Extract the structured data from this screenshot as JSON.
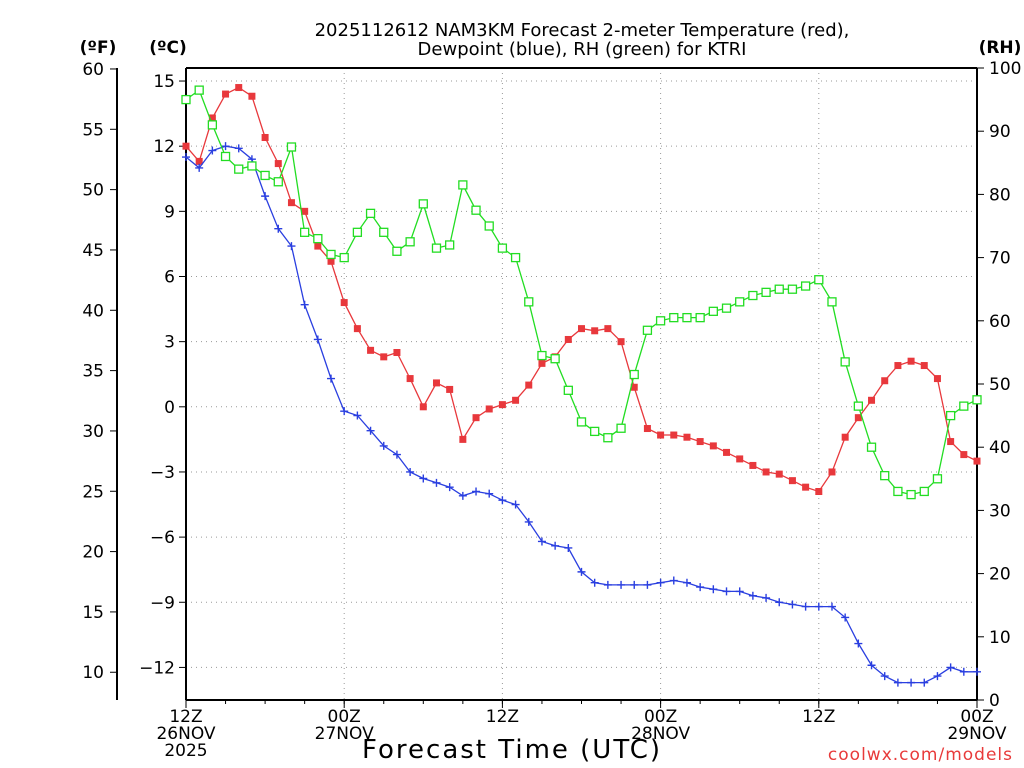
{
  "chart_data": {
    "type": "line",
    "title": [
      "2025112612 NAM3KM Forecast 2-meter Temperature (red),",
      "Dewpoint (blue), RH (green) for KTRI"
    ],
    "xlabel": "Forecast Time (UTC)",
    "credit": "coolwx.com/models",
    "units": {
      "fahrenheit": "(ºF)",
      "celsius": "(ºC)",
      "rh": "(RH)"
    },
    "x_ticks": [
      {
        "hour": 0,
        "lines": [
          "12Z",
          "26NOV",
          "2025"
        ]
      },
      {
        "hour": 12,
        "lines": [
          "00Z",
          "27NOV"
        ]
      },
      {
        "hour": 24,
        "lines": [
          "12Z"
        ]
      },
      {
        "hour": 36,
        "lines": [
          "00Z",
          "28NOV"
        ]
      },
      {
        "hour": 48,
        "lines": [
          "12Z"
        ]
      },
      {
        "hour": 60,
        "lines": [
          "00Z",
          "29NOV"
        ]
      }
    ],
    "x_range": [
      0,
      60
    ],
    "celsius_range": [
      -13.5,
      15.6
    ],
    "celsius_ticks": [
      "15",
      "12",
      "9",
      "6",
      "3",
      "0",
      "−3",
      "−6",
      "−9",
      "−12"
    ],
    "fahrenheit_ticks": [
      "60",
      "55",
      "50",
      "45",
      "40",
      "35",
      "30",
      "25",
      "20",
      "15",
      "10"
    ],
    "rh_range": [
      0,
      100
    ],
    "rh_ticks": [
      "100",
      "90",
      "80",
      "70",
      "60",
      "50",
      "40",
      "30",
      "20",
      "10",
      "0"
    ],
    "hours": [
      0,
      1,
      2,
      3,
      4,
      5,
      6,
      7,
      8,
      9,
      10,
      11,
      12,
      13,
      14,
      15,
      16,
      17,
      18,
      19,
      20,
      21,
      22,
      23,
      24,
      25,
      26,
      27,
      28,
      29,
      30,
      31,
      32,
      33,
      34,
      35,
      36,
      37,
      38,
      39,
      40,
      41,
      42,
      43,
      44,
      45,
      46,
      47,
      48,
      49,
      50,
      51,
      52,
      53,
      54,
      55,
      56,
      57,
      58,
      59,
      60
    ],
    "series": [
      {
        "name": "2-meter Temperature",
        "unit": "C",
        "color": "#e8383c",
        "marker": "filled-square",
        "values": [
          12.0,
          11.3,
          13.3,
          14.4,
          14.7,
          14.3,
          12.4,
          11.2,
          9.4,
          9.0,
          7.4,
          6.7,
          4.8,
          3.6,
          2.6,
          2.3,
          2.5,
          1.3,
          0.0,
          1.1,
          0.8,
          -1.5,
          -0.5,
          -0.1,
          0.1,
          0.3,
          1.0,
          2.0,
          2.3,
          3.1,
          3.6,
          3.5,
          3.6,
          3.0,
          0.9,
          -1.0,
          -1.3,
          -1.3,
          -1.4,
          -1.6,
          -1.8,
          -2.1,
          -2.4,
          -2.7,
          -3.0,
          -3.1,
          -3.4,
          -3.7,
          -3.9,
          -3.0,
          -1.4,
          -0.5,
          0.3,
          1.2,
          1.9,
          2.1,
          1.9,
          1.3,
          -1.6,
          -2.2,
          -2.5
        ]
      },
      {
        "name": "Dewpoint",
        "unit": "C",
        "color": "#2a3fe0",
        "marker": "plus",
        "values": [
          11.5,
          11.0,
          11.8,
          12.0,
          11.9,
          11.4,
          9.7,
          8.2,
          7.4,
          4.7,
          3.1,
          1.3,
          -0.2,
          -0.4,
          -1.1,
          -1.8,
          -2.2,
          -3.0,
          -3.3,
          -3.5,
          -3.7,
          -4.1,
          -3.9,
          -4.0,
          -4.3,
          -4.5,
          -5.3,
          -6.2,
          -6.4,
          -6.5,
          -7.6,
          -8.1,
          -8.2,
          -8.2,
          -8.2,
          -8.2,
          -8.1,
          -8.0,
          -8.1,
          -8.3,
          -8.4,
          -8.5,
          -8.5,
          -8.7,
          -8.8,
          -9.0,
          -9.1,
          -9.2,
          -9.2,
          -9.2,
          -9.7,
          -10.9,
          -11.9,
          -12.4,
          -12.7,
          -12.7,
          -12.7,
          -12.4,
          -12.0,
          -12.2,
          -12.2
        ]
      },
      {
        "name": "RH",
        "unit": "%",
        "color": "#22dd22",
        "marker": "hollow-square",
        "values": [
          95,
          96.5,
          91,
          86,
          84,
          84.5,
          83,
          82,
          87.5,
          74,
          73,
          70.5,
          70,
          74,
          77,
          74,
          71,
          72.5,
          78.5,
          71.5,
          72,
          81.5,
          77.5,
          75,
          71.5,
          70,
          63,
          54.5,
          54,
          49,
          44,
          42.5,
          41.5,
          43,
          51.5,
          58.5,
          60,
          60.5,
          60.5,
          60.5,
          61.5,
          62,
          63,
          64,
          64.5,
          65,
          65,
          65.5,
          66.5,
          63,
          53.5,
          46.5,
          40,
          35.5,
          33,
          32.5,
          33,
          35,
          45,
          46.5,
          47.5
        ]
      }
    ]
  }
}
